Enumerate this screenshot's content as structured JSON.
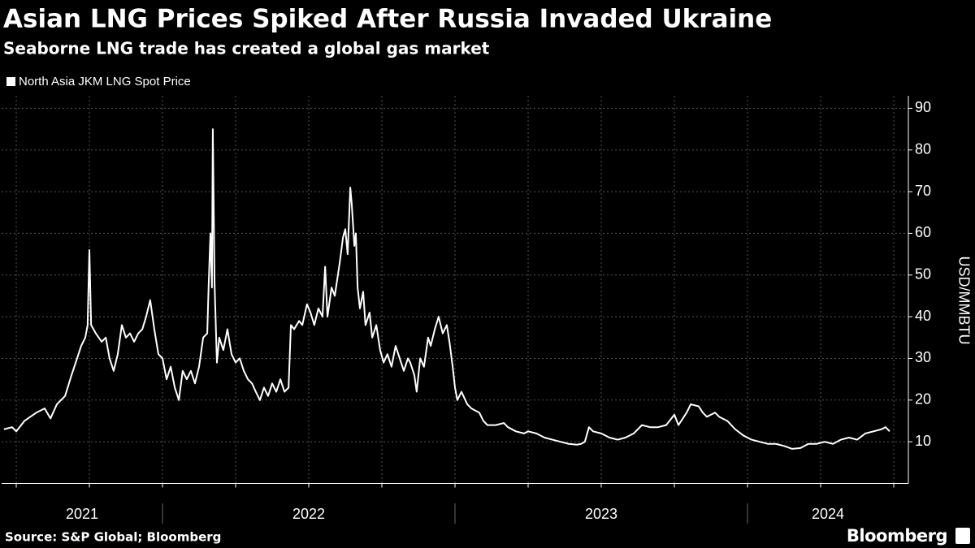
{
  "chart_data": {
    "type": "line",
    "title": "Asian LNG Prices Spiked After Russia Invaded Ukraine",
    "subtitle": "Seaborne LNG trade has created a global gas market",
    "y_label": "USD/MMBTU",
    "source": "Source: S&P Global; Bloomberg",
    "brand": "Bloomberg",
    "x": [
      2021.458,
      2021.486,
      2021.5,
      2021.528,
      2021.569,
      2021.597,
      2021.617,
      2021.639,
      2021.667,
      2021.689,
      2021.708,
      2021.722,
      2021.736,
      2021.744,
      2021.75,
      2021.756,
      2021.772,
      2021.792,
      2021.806,
      2021.819,
      2021.833,
      2021.847,
      2021.861,
      2021.875,
      2021.889,
      2021.903,
      2021.917,
      2021.931,
      2021.944,
      2021.958,
      2021.972,
      2021.986,
      2022.0,
      2022.014,
      2022.028,
      2022.042,
      2022.056,
      2022.069,
      2022.083,
      2022.097,
      2022.111,
      2022.125,
      2022.139,
      2022.153,
      2022.158,
      2022.164,
      2022.169,
      2022.172,
      2022.178,
      2022.186,
      2022.194,
      2022.208,
      2022.222,
      2022.236,
      2022.25,
      2022.264,
      2022.278,
      2022.292,
      2022.306,
      2022.319,
      2022.333,
      2022.347,
      2022.361,
      2022.375,
      2022.389,
      2022.403,
      2022.417,
      2022.431,
      2022.439,
      2022.45,
      2022.467,
      2022.478,
      2022.494,
      2022.506,
      2022.519,
      2022.533,
      2022.547,
      2022.556,
      2022.564,
      2022.578,
      2022.589,
      2022.606,
      2022.617,
      2022.625,
      2022.633,
      2022.642,
      2022.647,
      2022.656,
      2022.661,
      2022.667,
      2022.675,
      2022.686,
      2022.694,
      2022.708,
      2022.717,
      2022.731,
      2022.744,
      2022.756,
      2022.769,
      2022.783,
      2022.797,
      2022.811,
      2022.825,
      2022.839,
      2022.847,
      2022.861,
      2022.869,
      2022.881,
      2022.894,
      2022.908,
      2022.917,
      2022.931,
      2022.944,
      2022.958,
      2022.972,
      2022.981,
      2022.992,
      2023.0,
      2023.008,
      2023.022,
      2023.042,
      2023.056,
      2023.069,
      2023.083,
      2023.097,
      2023.111,
      2023.139,
      2023.167,
      2023.181,
      2023.208,
      2023.236,
      2023.25,
      2023.278,
      2023.306,
      2023.333,
      2023.361,
      2023.389,
      2023.417,
      2023.431,
      2023.444,
      2023.458,
      2023.472,
      2023.5,
      2023.528,
      2023.556,
      2023.583,
      2023.611,
      2023.639,
      2023.667,
      2023.694,
      2023.722,
      2023.75,
      2023.764,
      2023.792,
      2023.806,
      2023.833,
      2023.847,
      2023.861,
      2023.889,
      2023.903,
      2023.931,
      2023.958,
      2023.986,
      2024.014,
      2024.042,
      2024.069,
      2024.097,
      2024.125,
      2024.153,
      2024.181,
      2024.208,
      2024.236,
      2024.264,
      2024.292,
      2024.319,
      2024.347,
      2024.375,
      2024.403,
      2024.431,
      2024.458,
      2024.472,
      2024.486
    ],
    "series": [
      {
        "name": "North Asia JKM LNG Spot Price",
        "color": "#ffffff",
        "values": [
          13,
          13.5,
          12.5,
          15,
          17,
          18,
          15.6,
          19,
          21,
          26,
          30,
          33,
          35,
          38,
          56,
          38,
          36,
          34,
          35,
          30,
          27,
          31,
          38,
          35,
          36,
          34,
          36,
          37,
          40,
          44,
          37,
          31,
          30,
          25,
          28,
          23,
          20,
          27,
          25,
          27,
          24,
          28,
          35,
          36,
          48,
          60,
          47,
          85,
          48,
          29,
          35,
          32,
          37,
          31,
          29,
          30,
          27,
          25,
          24,
          22,
          20,
          23,
          21,
          24,
          22,
          25,
          22,
          23,
          38,
          37,
          39,
          38,
          43,
          41,
          38,
          42,
          40,
          52,
          40,
          47,
          45,
          53,
          59,
          61,
          55,
          71,
          67,
          57,
          60,
          47,
          42,
          46,
          38,
          41,
          35,
          38,
          32,
          29,
          31,
          28,
          33,
          30,
          27,
          30,
          29,
          26,
          22,
          30,
          28,
          35,
          33,
          37,
          40,
          36,
          38,
          34,
          28,
          23,
          20,
          22,
          19,
          18,
          17.5,
          17,
          15,
          14,
          14,
          14.5,
          13.5,
          12.5,
          12,
          12.5,
          12,
          11,
          10.5,
          10,
          9.5,
          9.3,
          9.5,
          10,
          13.5,
          12.5,
          12,
          11,
          10.5,
          11,
          12,
          14,
          13.5,
          13.5,
          14,
          16.5,
          14,
          17,
          19,
          18.5,
          17,
          16,
          17,
          16,
          15,
          13,
          11.5,
          10.5,
          10,
          9.5,
          9.5,
          9,
          8.3,
          8.5,
          9.5,
          9.5,
          10,
          9.5,
          10.5,
          11,
          10.5,
          12,
          12.5,
          13,
          13.5,
          12.5
        ]
      }
    ],
    "xlim": [
      2021.45,
      2024.55
    ],
    "xticks": [
      2021.5,
      2021.75,
      2022,
      2022.25,
      2022.5,
      2022.75,
      2023,
      2023.25,
      2023.5,
      2023.75,
      2024,
      2024.25,
      2024.5
    ],
    "year_ticks": [
      2022,
      2023,
      2024
    ],
    "year_labels": [
      "2021",
      "2022",
      "2023",
      "2024"
    ],
    "ylim": [
      0,
      93
    ],
    "yticks": [
      10,
      20,
      30,
      40,
      50,
      60,
      70,
      80,
      90
    ],
    "grid": true
  }
}
